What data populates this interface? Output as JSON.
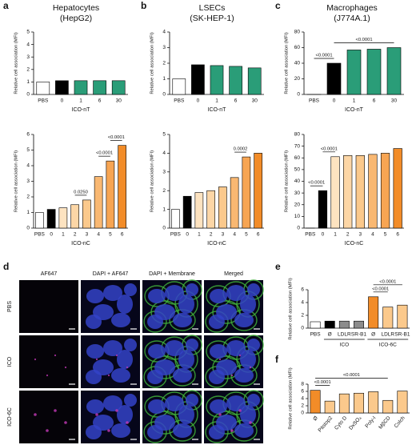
{
  "chart_data": [
    {
      "type": "bar",
      "panel": "a",
      "title": "Hepatocytes",
      "subtitle": "(HepG2)",
      "y_label": "Relative cell association (MFI)",
      "x_label": "ICO-nT",
      "categories": [
        "PBS",
        "0",
        "1",
        "6",
        "30"
      ],
      "values": [
        1,
        1.1,
        1.1,
        1.1,
        1.1
      ],
      "colors": [
        "#ffffff",
        "#000000",
        "#2a9d78",
        "#2a9d78",
        "#2a9d78"
      ],
      "ylim": [
        0,
        5
      ],
      "yticks": [
        0,
        1,
        2,
        3,
        4,
        5
      ],
      "annotations": []
    },
    {
      "type": "bar",
      "y_label": "Relative cell association (MFI)",
      "x_label": "ICO-nC",
      "categories": [
        "PBS",
        "0",
        "1",
        "2",
        "3",
        "4",
        "5",
        "6"
      ],
      "values": [
        1,
        1.2,
        1.3,
        1.5,
        1.8,
        3.3,
        4.3,
        5.3
      ],
      "colors": [
        "#ffffff",
        "#000000",
        "#fde3c0",
        "#fcd6a6",
        "#fbc98c",
        "#f9b872",
        "#f7a553",
        "#f28c28"
      ],
      "ylim": [
        0,
        6
      ],
      "yticks": [
        0,
        1,
        2,
        3,
        4,
        5,
        6
      ],
      "annotations": [
        {
          "text": "0.0250",
          "from": 3,
          "to": 4
        },
        {
          "text": "<0.0001",
          "from": 5,
          "to": 6
        },
        {
          "text": "<0.0001",
          "from": 6,
          "to": 7
        }
      ]
    },
    {
      "type": "bar",
      "panel": "b",
      "title": "LSECs",
      "subtitle": "(SK-HEP-1)",
      "y_label": "Relative cell association (MFI)",
      "x_label": "ICO-nT",
      "categories": [
        "PBS",
        "0",
        "1",
        "6",
        "30"
      ],
      "values": [
        1,
        1.9,
        1.85,
        1.8,
        1.7
      ],
      "colors": [
        "#ffffff",
        "#000000",
        "#2a9d78",
        "#2a9d78",
        "#2a9d78"
      ],
      "ylim": [
        0,
        4
      ],
      "yticks": [
        0,
        1,
        2,
        3,
        4
      ],
      "annotations": []
    },
    {
      "type": "bar",
      "y_label": "Relative cell association (MFI)",
      "x_label": "ICO-nC",
      "categories": [
        "PBS",
        "0",
        "1",
        "2",
        "3",
        "4",
        "5",
        "6"
      ],
      "values": [
        1,
        1.7,
        1.9,
        2.0,
        2.2,
        2.7,
        3.8,
        4.0
      ],
      "colors": [
        "#ffffff",
        "#000000",
        "#fde3c0",
        "#fcd6a6",
        "#fbc98c",
        "#f9b872",
        "#f7a553",
        "#f28c28"
      ],
      "ylim": [
        0,
        5
      ],
      "yticks": [
        0,
        1,
        2,
        3,
        4,
        5
      ],
      "annotations": [
        {
          "text": "0.0002",
          "from": 5,
          "to": 6
        }
      ]
    },
    {
      "type": "bar",
      "panel": "c",
      "title": "Macrophages",
      "subtitle": "(J774A.1)",
      "y_label": "Relative cell association (MFI)",
      "x_label": "ICO-nT",
      "categories": [
        "PBS",
        "0",
        "1",
        "6",
        "30"
      ],
      "values": [
        0,
        40,
        57,
        58,
        60
      ],
      "colors": [
        "#ffffff",
        "#000000",
        "#2a9d78",
        "#2a9d78",
        "#2a9d78"
      ],
      "ylim": [
        0,
        80
      ],
      "yticks": [
        0,
        20,
        40,
        60,
        80
      ],
      "annotations": [
        {
          "text": "<0.0001",
          "from": 0,
          "to": 1
        },
        {
          "text": "<0.0001",
          "from": 1,
          "to": 4
        }
      ]
    },
    {
      "type": "bar",
      "y_label": "Relative cell association (MFI)",
      "x_label": "ICO-nC",
      "categories": [
        "PBS",
        "0",
        "1",
        "2",
        "3",
        "4",
        "5",
        "6"
      ],
      "values": [
        0,
        32,
        61,
        62,
        62,
        63,
        64,
        68
      ],
      "colors": [
        "#ffffff",
        "#000000",
        "#fde3c0",
        "#fcd6a6",
        "#fbc98c",
        "#f9b872",
        "#f7a553",
        "#f28c28"
      ],
      "ylim": [
        0,
        80
      ],
      "yticks": [
        0,
        10,
        20,
        30,
        40,
        50,
        60,
        70,
        80
      ],
      "annotations": [
        {
          "text": "<0.0001",
          "from": 0,
          "to": 1
        },
        {
          "text": "<0.0001",
          "from": 1,
          "to": 2
        }
      ]
    },
    {
      "type": "bar",
      "panel": "e",
      "y_label": "Relative cell association (MFI)",
      "categories": [
        "PBS",
        "Ø",
        "LDLR",
        "SR-B1",
        "Ø",
        "LDLR",
        "SR-B1"
      ],
      "values": [
        1,
        1.1,
        1.1,
        1.1,
        4.9,
        3.3,
        3.6
      ],
      "colors": [
        "#ffffff",
        "#000000",
        "#8c8c8c",
        "#8c8c8c",
        "#f28c28",
        "#fbc98c",
        "#fbc98c"
      ],
      "ylim": [
        0,
        6
      ],
      "yticks": [
        0,
        2,
        4,
        6
      ],
      "groups": [
        {
          "label": "ICO",
          "from": 1,
          "to": 3
        },
        {
          "label": "ICO-6C",
          "from": 4,
          "to": 6
        }
      ],
      "annotations": [
        {
          "text": "<0.0001",
          "from": 4,
          "to": 5
        },
        {
          "text": "<0.0001",
          "from": 4,
          "to": 6
        }
      ]
    },
    {
      "type": "bar",
      "panel": "f",
      "y_label": "Relative cell association (MFI)",
      "x_label_rotation": 50,
      "categories": [
        "Ø",
        "Pitstop2",
        "Cyto D",
        "DxSO₄",
        "Poly-I",
        "MβCD",
        "Colch"
      ],
      "values": [
        6.3,
        3.3,
        5.3,
        5.5,
        5.9,
        3.5,
        6.1
      ],
      "colors": [
        "#f28c28",
        "#fbc98c",
        "#fbc98c",
        "#fbc98c",
        "#fbc98c",
        "#fbc98c",
        "#fbc98c"
      ],
      "ylim": [
        0,
        8
      ],
      "yticks": [
        0,
        2,
        4,
        6,
        8
      ],
      "annotations": [
        {
          "text": "<0.0001",
          "from": 0,
          "to": 1
        },
        {
          "text": "<0.0001",
          "from": 0,
          "to": 5
        }
      ]
    }
  ],
  "microscopy": {
    "panel": "d",
    "columns": [
      "AF647",
      "DAPI + AF647",
      "DAPI + Membrane",
      "Merged"
    ],
    "rows": [
      "PBS",
      "ICO",
      "ICO-6C"
    ]
  }
}
